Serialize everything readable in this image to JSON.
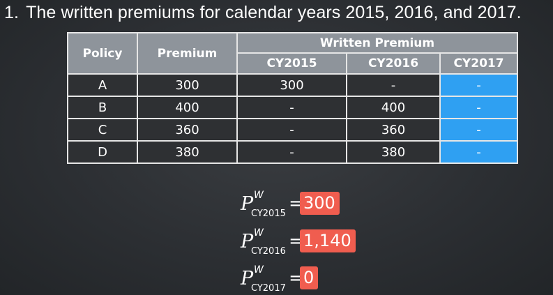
{
  "question": {
    "number": "1.",
    "text": "The written premiums for calendar years 2015, 2016, and 2017."
  },
  "table": {
    "headers": {
      "policy": "Policy",
      "premium": "Premium",
      "written_premium": "Written Premium",
      "cy2015": "CY2015",
      "cy2016": "CY2016",
      "cy2017": "CY2017"
    },
    "rows": [
      {
        "policy": "A",
        "premium": "300",
        "cy2015": "300",
        "cy2016": "-",
        "cy2017": "-"
      },
      {
        "policy": "B",
        "premium": "400",
        "cy2015": "-",
        "cy2016": "400",
        "cy2017": "-"
      },
      {
        "policy": "C",
        "premium": "360",
        "cy2015": "-",
        "cy2016": "360",
        "cy2017": "-"
      },
      {
        "policy": "D",
        "premium": "380",
        "cy2015": "-",
        "cy2016": "380",
        "cy2017": "-"
      }
    ],
    "highlight_color": "#2fa0f2"
  },
  "formulas": [
    {
      "symbol": "P",
      "superscript": "W",
      "subscript": "CY2015",
      "equals": "=",
      "value": "300"
    },
    {
      "symbol": "P",
      "superscript": "W",
      "subscript": "CY2016",
      "equals": "=",
      "value": "1,140"
    },
    {
      "symbol": "P",
      "superscript": "W",
      "subscript": "CY2017",
      "equals": "=",
      "value": "0"
    }
  ],
  "colors": {
    "value_badge": "#f05d4f",
    "header_bg": "#8e949b",
    "background": "#2c2f33"
  }
}
